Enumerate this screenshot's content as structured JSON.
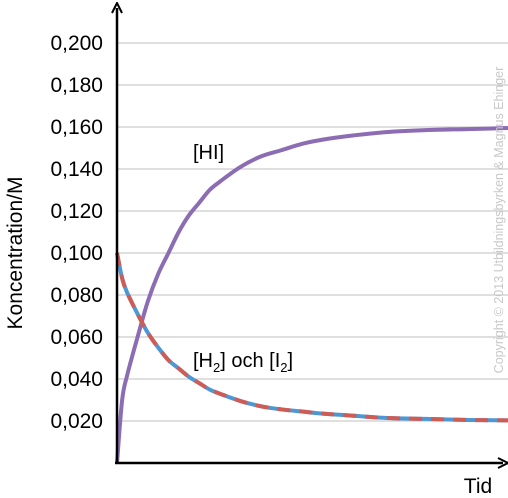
{
  "chart_data": {
    "type": "line",
    "title": "",
    "xlabel": "Tid",
    "ylabel": "Koncentration/M",
    "ylim": [
      0,
      0.21
    ],
    "yticks": [
      0.02,
      0.04,
      0.06,
      0.08,
      0.1,
      0.12,
      0.14,
      0.16,
      0.18,
      0.2
    ],
    "ytick_labels": [
      "0,020",
      "0,040",
      "0,060",
      "0,080",
      "0,100",
      "0,120",
      "0,140",
      "0,160",
      "0,180",
      "0,200"
    ],
    "grid": "horizontal",
    "x": [
      0,
      0.5,
      1,
      2,
      3,
      4,
      5,
      6,
      7,
      8,
      9,
      10,
      12,
      14,
      16,
      18,
      20,
      23,
      26,
      30,
      34,
      38
    ],
    "series": [
      {
        "key": "HI",
        "color": "#8c6db3",
        "values": [
          0,
          0.03,
          0.042,
          0.06,
          0.077,
          0.09,
          0.1,
          0.11,
          0.118,
          0.124,
          0.13,
          0.134,
          0.141,
          0.146,
          0.149,
          0.152,
          0.154,
          0.156,
          0.1575,
          0.1585,
          0.159,
          0.1595
        ]
      },
      {
        "key": "H2",
        "color": "#4f97d3",
        "values": [
          0.1,
          0.088,
          0.081,
          0.071,
          0.062,
          0.055,
          0.049,
          0.045,
          0.041,
          0.038,
          0.035,
          0.033,
          0.0295,
          0.027,
          0.0255,
          0.0245,
          0.0235,
          0.0225,
          0.0215,
          0.021,
          0.0205,
          0.0203
        ]
      },
      {
        "key": "I2",
        "color": "#cf5b55",
        "values": [
          0.1,
          0.088,
          0.081,
          0.071,
          0.062,
          0.055,
          0.049,
          0.045,
          0.041,
          0.038,
          0.035,
          0.033,
          0.0295,
          0.027,
          0.0255,
          0.0245,
          0.0235,
          0.0225,
          0.0215,
          0.021,
          0.0205,
          0.0203
        ]
      }
    ],
    "annotations": {
      "hi_label": "[HI]",
      "h2_open": "[H",
      "h2_sub": "2",
      "h2_mid": "] och [I",
      "i2_sub": "2",
      "i2_close": "]"
    }
  },
  "copyright": "Copyright © 2013 Utbildningsbyrken & Magnus Ehinger",
  "colors": {
    "axis": "#000000",
    "grid": "#bfbfbf"
  }
}
